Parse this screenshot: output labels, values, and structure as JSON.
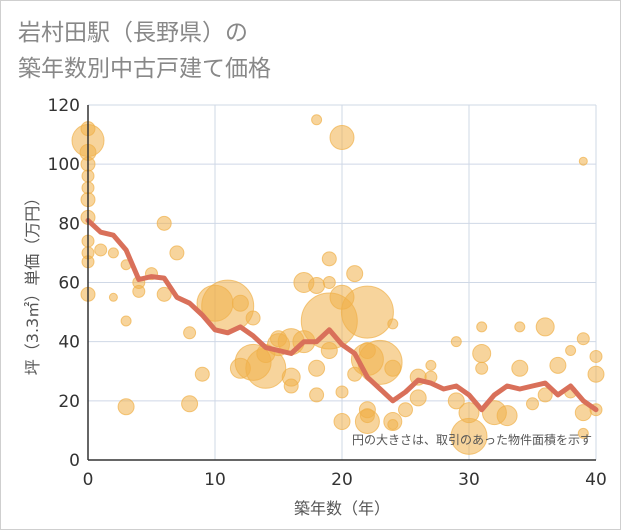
{
  "chart_data": {
    "type": "scatter",
    "title_lines": [
      "岩村田駅（長野県）の",
      "築年数別中古戸建て価格"
    ],
    "xlabel": "築年数（年）",
    "ylabel": "坪（3.3㎡）単価（万円）",
    "xlim": [
      0,
      40
    ],
    "ylim": [
      0,
      120
    ],
    "x_ticks": [
      "0",
      "10",
      "20",
      "30",
      "40"
    ],
    "y_ticks": [
      "0",
      "20",
      "40",
      "60",
      "80",
      "100",
      "120"
    ],
    "grid": true,
    "note": "円の大きさは、取引のあった物件面積を示す",
    "colors": {
      "bubble": "#f0b04a",
      "line": "#d9705a",
      "grid": "#cfd8e6"
    },
    "series": [
      {
        "type": "line",
        "points": [
          [
            0,
            81
          ],
          [
            1,
            77
          ],
          [
            2,
            76
          ],
          [
            3,
            71
          ],
          [
            4,
            61
          ],
          [
            5,
            62
          ],
          [
            6,
            61.5
          ],
          [
            7,
            55
          ],
          [
            8,
            53
          ],
          [
            9,
            49
          ],
          [
            10,
            44
          ],
          [
            11,
            43
          ],
          [
            12,
            45
          ],
          [
            13,
            42
          ],
          [
            14,
            38
          ],
          [
            15,
            37
          ],
          [
            16,
            36
          ],
          [
            17,
            40
          ],
          [
            18,
            40
          ],
          [
            19,
            44
          ],
          [
            20,
            39
          ],
          [
            21,
            36
          ],
          [
            22,
            28
          ],
          [
            23,
            24
          ],
          [
            24,
            20
          ],
          [
            25,
            23
          ],
          [
            26,
            27
          ],
          [
            27,
            26
          ],
          [
            28,
            24
          ],
          [
            29,
            25
          ],
          [
            30,
            22
          ],
          [
            31,
            17
          ],
          [
            32,
            22
          ],
          [
            33,
            25
          ],
          [
            34,
            24
          ],
          [
            35,
            25
          ],
          [
            36,
            26
          ],
          [
            37,
            22
          ],
          [
            38,
            25
          ],
          [
            39,
            20
          ],
          [
            40,
            17
          ]
        ]
      },
      {
        "type": "bubble",
        "points": [
          [
            0,
            108,
            16
          ],
          [
            0,
            112,
            7
          ],
          [
            0,
            104,
            8
          ],
          [
            0,
            100,
            7
          ],
          [
            0,
            96,
            6
          ],
          [
            0,
            92,
            6
          ],
          [
            0,
            88,
            7
          ],
          [
            0,
            82,
            7
          ],
          [
            0,
            74,
            6
          ],
          [
            0,
            70,
            6
          ],
          [
            0,
            67,
            6
          ],
          [
            0,
            56,
            7
          ],
          [
            1,
            71,
            6
          ],
          [
            2,
            70,
            5
          ],
          [
            2,
            55,
            4
          ],
          [
            3,
            66,
            5
          ],
          [
            3,
            47,
            5
          ],
          [
            3,
            18,
            8
          ],
          [
            4,
            60,
            6
          ],
          [
            4,
            57,
            6
          ],
          [
            5,
            63,
            6
          ],
          [
            6,
            80,
            7
          ],
          [
            6,
            56,
            7
          ],
          [
            7,
            70,
            7
          ],
          [
            8,
            43,
            6
          ],
          [
            8,
            19,
            8
          ],
          [
            9,
            29,
            7
          ],
          [
            10,
            53,
            18
          ],
          [
            11,
            52,
            26
          ],
          [
            12,
            53,
            8
          ],
          [
            12,
            31,
            10
          ],
          [
            13,
            48,
            7
          ],
          [
            13,
            33,
            18
          ],
          [
            14,
            31,
            20
          ],
          [
            14,
            36,
            9
          ],
          [
            15,
            41,
            8
          ],
          [
            15,
            39,
            11
          ],
          [
            16,
            40,
            13
          ],
          [
            16,
            28,
            9
          ],
          [
            16,
            25,
            7
          ],
          [
            17,
            40,
            11
          ],
          [
            17,
            60,
            10
          ],
          [
            18,
            59,
            8
          ],
          [
            18,
            31,
            8
          ],
          [
            18,
            22,
            7
          ],
          [
            18,
            115,
            5
          ],
          [
            19,
            68,
            7
          ],
          [
            19,
            60,
            6
          ],
          [
            19,
            37,
            8
          ],
          [
            19,
            47,
            28
          ],
          [
            20,
            55,
            12
          ],
          [
            20,
            109,
            12
          ],
          [
            20,
            13,
            8
          ],
          [
            20,
            23,
            6
          ],
          [
            21,
            63,
            8
          ],
          [
            21,
            29,
            7
          ],
          [
            22,
            50,
            26
          ],
          [
            22,
            37,
            8
          ],
          [
            22,
            34,
            16
          ],
          [
            22,
            13,
            12
          ],
          [
            22,
            17,
            8
          ],
          [
            22,
            15,
            7
          ],
          [
            23,
            33,
            22
          ],
          [
            24,
            46,
            5
          ],
          [
            24,
            31,
            8
          ],
          [
            24,
            13,
            9
          ],
          [
            24,
            12,
            5
          ],
          [
            25,
            17,
            7
          ],
          [
            26,
            21,
            8
          ],
          [
            26,
            28,
            8
          ],
          [
            27,
            32,
            5
          ],
          [
            27,
            28,
            6
          ],
          [
            29,
            40,
            5
          ],
          [
            29,
            20,
            8
          ],
          [
            30,
            8,
            18
          ],
          [
            30,
            16,
            10
          ],
          [
            31,
            45,
            5
          ],
          [
            31,
            36,
            9
          ],
          [
            31,
            31,
            6
          ],
          [
            32,
            16,
            12
          ],
          [
            33,
            15,
            10
          ],
          [
            34,
            31,
            8
          ],
          [
            34,
            45,
            5
          ],
          [
            35,
            19,
            6
          ],
          [
            36,
            45,
            9
          ],
          [
            36,
            22,
            7
          ],
          [
            37,
            32,
            8
          ],
          [
            38,
            37,
            5
          ],
          [
            38,
            23,
            6
          ],
          [
            39,
            41,
            6
          ],
          [
            39,
            16,
            8
          ],
          [
            39,
            101,
            4
          ],
          [
            40,
            35,
            6
          ],
          [
            40,
            29,
            8
          ],
          [
            40,
            17,
            6
          ],
          [
            39,
            9,
            5
          ]
        ]
      }
    ]
  }
}
